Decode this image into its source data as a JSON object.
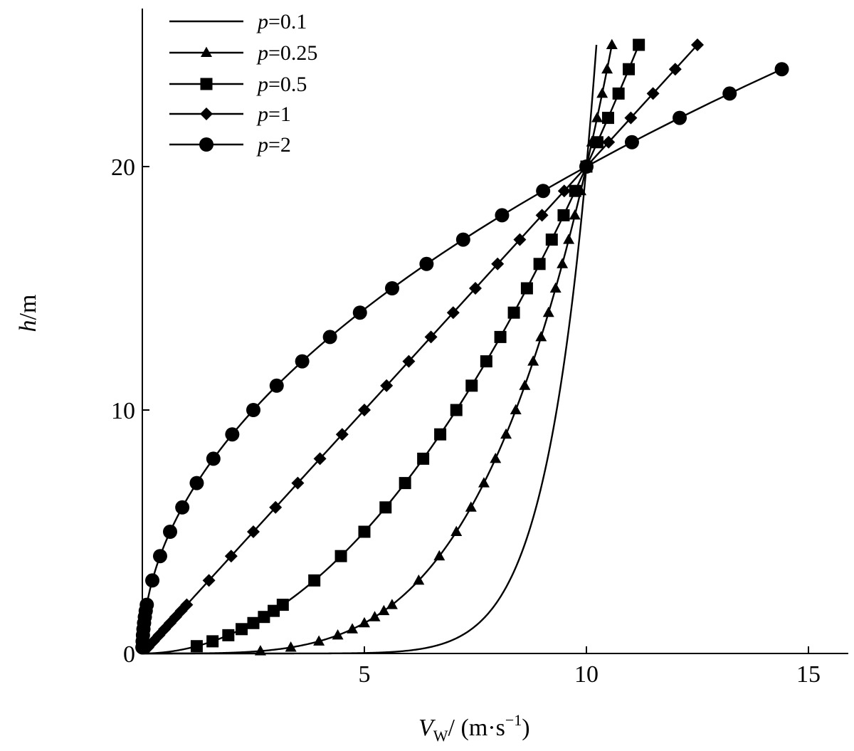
{
  "chart_data": {
    "type": "line",
    "title": "",
    "xlabel": {
      "main": "V",
      "sub": "W",
      "unit": "/ (m·s",
      "sup": "−1",
      "close": ")"
    },
    "ylabel": {
      "main": "h",
      "unit": "/m"
    },
    "xlim": [
      0,
      16
    ],
    "ylim": [
      0,
      26.5
    ],
    "x_ticks": [
      5,
      10,
      15
    ],
    "y_ticks": [
      0,
      10,
      20
    ],
    "x_tick_labels": [
      "5",
      "10",
      "15"
    ],
    "y_tick_labels": [
      "0",
      "10",
      "20"
    ],
    "grid": false,
    "legend_position": "top-left",
    "reference": {
      "V": 10,
      "h": 20
    },
    "series": [
      {
        "name_prefix": "p",
        "name_value": "=0.1",
        "p": 0.1,
        "marker": "none",
        "h_values": [
          0.05,
          0.2,
          0.5,
          1,
          2,
          3,
          4,
          5,
          6,
          7,
          8,
          9,
          10,
          11,
          12,
          13,
          14,
          15,
          16,
          17,
          18,
          19,
          20,
          21,
          22,
          23,
          24,
          25
        ]
      },
      {
        "name_prefix": "p",
        "name_value": "=0.25",
        "p": 0.25,
        "marker": "triangle",
        "h_values": [
          0.1,
          0.25,
          0.5,
          0.75,
          1,
          1.25,
          1.5,
          1.75,
          2,
          3,
          4,
          5,
          6,
          7,
          8,
          9,
          10,
          11,
          12,
          13,
          14,
          15,
          16,
          17,
          18,
          19,
          20,
          21,
          22,
          23,
          24,
          25
        ]
      },
      {
        "name_prefix": "p",
        "name_value": "=0.5",
        "p": 0.5,
        "marker": "square",
        "h_values": [
          0.3,
          0.5,
          0.75,
          1,
          1.25,
          1.5,
          1.75,
          2,
          3,
          4,
          5,
          6,
          7,
          8,
          9,
          10,
          11,
          12,
          13,
          14,
          15,
          16,
          17,
          18,
          19,
          20,
          21,
          22,
          23,
          24,
          25
        ]
      },
      {
        "name_prefix": "p",
        "name_value": "=1",
        "p": 1,
        "marker": "diamond",
        "h_values": [
          0.25,
          0.5,
          0.75,
          1,
          1.25,
          1.5,
          1.75,
          2,
          3,
          4,
          5,
          6,
          7,
          8,
          9,
          10,
          11,
          12,
          13,
          14,
          15,
          16,
          17,
          18,
          19,
          20,
          21,
          22,
          23,
          24,
          25
        ]
      },
      {
        "name_prefix": "p",
        "name_value": "=2",
        "p": 2,
        "marker": "circle",
        "h_values": [
          0.25,
          0.5,
          0.75,
          1,
          1.25,
          1.5,
          1.75,
          2,
          3,
          4,
          5,
          6,
          7,
          8,
          9,
          10,
          11,
          12,
          13,
          14,
          15,
          16,
          17,
          18,
          19,
          20,
          21,
          22,
          23,
          24
        ]
      }
    ]
  }
}
